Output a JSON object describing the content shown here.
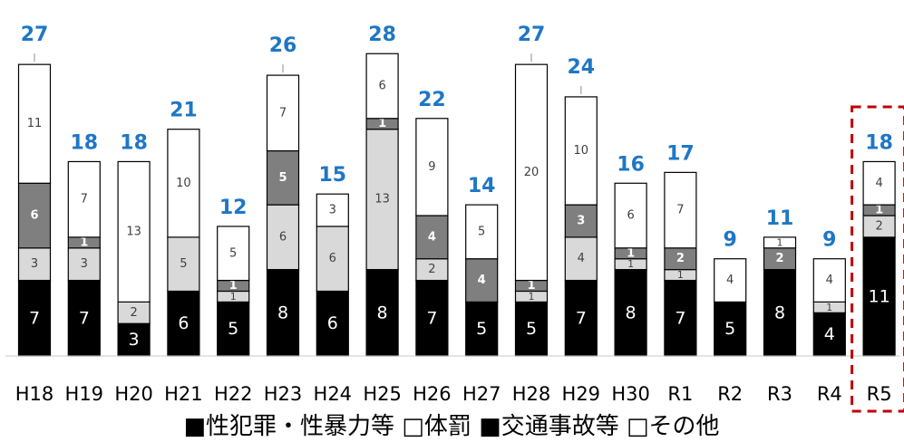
{
  "chart_data": {
    "type": "bar",
    "stacked": true,
    "categories": [
      "H18",
      "H19",
      "H20",
      "H21",
      "H22",
      "H23",
      "H24",
      "H25",
      "H26",
      "H27",
      "H28",
      "H29",
      "H30",
      "R1",
      "R2",
      "R3",
      "R4",
      "R5"
    ],
    "totals": [
      27,
      18,
      18,
      21,
      12,
      26,
      15,
      28,
      22,
      14,
      27,
      24,
      16,
      17,
      9,
      11,
      9,
      18
    ],
    "series": [
      {
        "name": "性犯罪・性暴力等",
        "color": "#000000",
        "values": [
          7,
          7,
          3,
          6,
          5,
          8,
          6,
          8,
          7,
          5,
          5,
          7,
          8,
          7,
          5,
          8,
          4,
          11
        ]
      },
      {
        "name": "体罰",
        "color": "#d9d9d9",
        "values": [
          3,
          3,
          2,
          5,
          1,
          6,
          6,
          13,
          2,
          0,
          1,
          4,
          1,
          1,
          0,
          0,
          1,
          2
        ]
      },
      {
        "name": "交通事故等",
        "color": "#7f7f7f",
        "values": [
          6,
          1,
          0,
          0,
          1,
          5,
          0,
          1,
          4,
          4,
          1,
          3,
          1,
          2,
          0,
          2,
          0,
          1
        ]
      },
      {
        "name": "その他",
        "color": "#ffffff",
        "values": [
          11,
          7,
          13,
          10,
          5,
          7,
          3,
          6,
          9,
          5,
          20,
          10,
          6,
          7,
          4,
          1,
          4,
          4
        ]
      }
    ],
    "highlight_category": "R5",
    "highlight_color": "#c00000",
    "total_label_color": "#1f77c4",
    "legend": [
      {
        "label": "■性犯罪・性暴力等"
      },
      {
        "label": "□体罰"
      },
      {
        "label": "■交通事故等"
      },
      {
        "label": "□その他"
      }
    ],
    "legend_position": "bottom"
  }
}
